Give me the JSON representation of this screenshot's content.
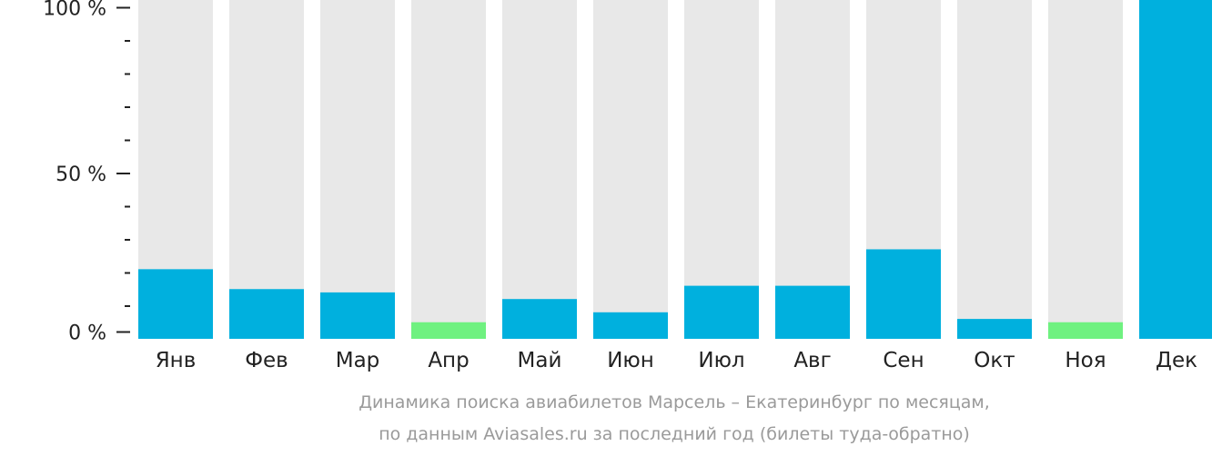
{
  "chart_data": {
    "type": "bar",
    "categories": [
      "Янв",
      "Фев",
      "Мар",
      "Апр",
      "Май",
      "Июн",
      "Июл",
      "Авг",
      "Сен",
      "Окт",
      "Ноя",
      "Дек"
    ],
    "values": [
      21,
      15,
      14,
      5,
      12,
      8,
      16,
      16,
      27,
      6,
      5,
      100
    ],
    "ylim": [
      0,
      100
    ],
    "yticks": [
      {
        "value": 0,
        "label": "0 %"
      },
      {
        "value": 50,
        "label": "50 %"
      },
      {
        "value": 100,
        "label": "100 %"
      }
    ],
    "minor_tick_step": 10,
    "background_bar_color": "#e8e8e8",
    "colors": {
      "normal": "#00b0de",
      "low": "#6ff180"
    },
    "low_months": [
      "Апр",
      "Ноя"
    ],
    "caption": [
      "Динамика поиска авиабилетов Марсель – Екатеринбург по месяцам,",
      "по данным Aviasales.ru за последний год (билеты туда-обратно)"
    ]
  }
}
